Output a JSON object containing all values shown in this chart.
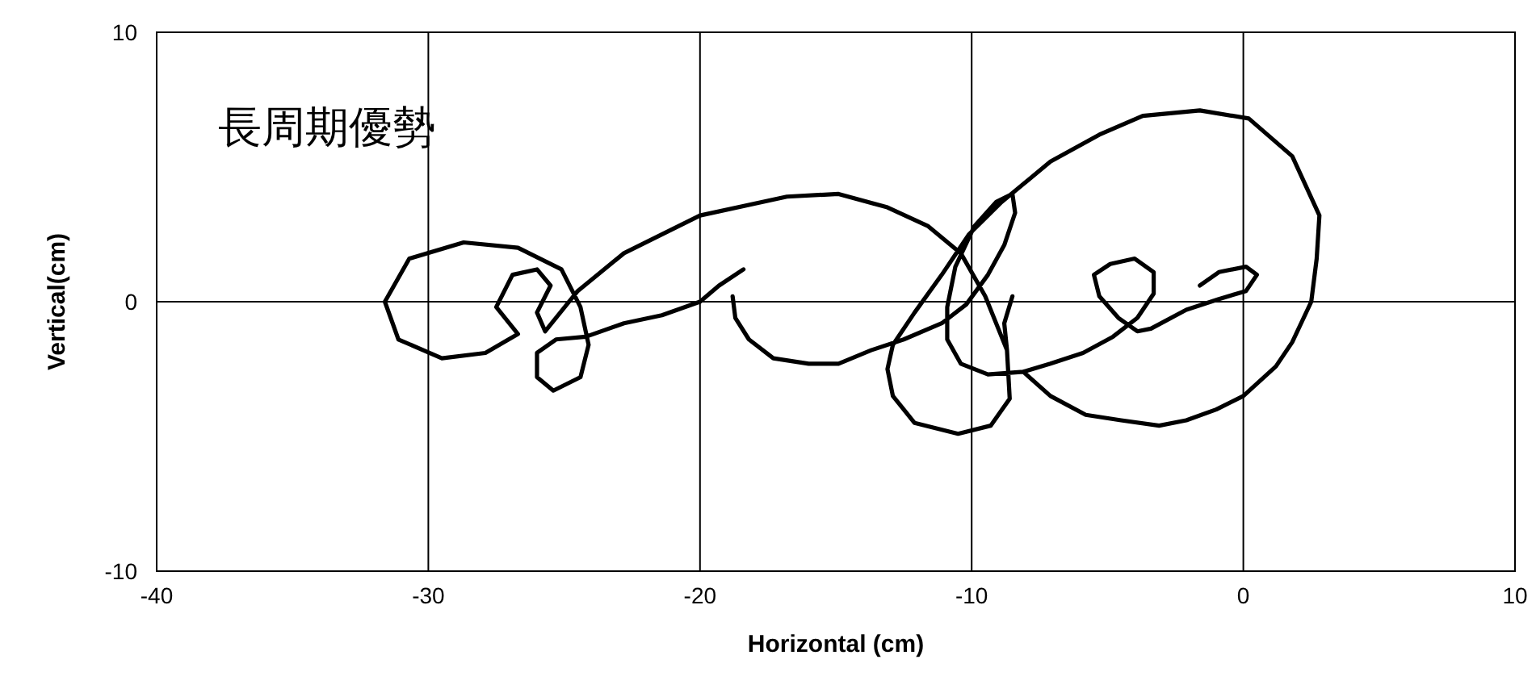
{
  "chart_data": {
    "type": "line",
    "xlabel": "Horizontal (cm)",
    "ylabel": "Vertical(cm)",
    "annotations": [
      "長周期優勢"
    ],
    "xlim": [
      -40,
      10
    ],
    "xticks": [
      -40,
      -30,
      -20,
      -10,
      0,
      10
    ],
    "ylim": [
      -10,
      10
    ],
    "yticks": [
      -10,
      0,
      10
    ],
    "grid": true,
    "marker": "none",
    "line_style": "solid",
    "series": [
      {
        "color": "#000000",
        "x": [
          -18.4,
          -19.3,
          -20.0,
          -21.4,
          -22.8,
          -24.2,
          -25.3,
          -26.0,
          -26.0,
          -25.4,
          -24.4,
          -24.1,
          -24.4,
          -25.1,
          -26.7,
          -28.7,
          -30.7,
          -31.6,
          -31.1,
          -29.5,
          -27.9,
          -26.7,
          -27.5,
          -26.9,
          -26.0,
          -25.5,
          -26.0,
          -25.7,
          -24.5,
          -22.8,
          -20.0,
          -16.8,
          -14.9,
          -13.1,
          -11.6,
          -10.4,
          -9.5,
          -8.7,
          -8.6,
          -9.3,
          -10.5,
          -12.1,
          -12.9,
          -13.1,
          -12.9,
          -12.1,
          -11.1,
          -10.1,
          -8.9,
          -7.1,
          -5.3,
          -3.7,
          -1.6,
          0.2,
          1.8,
          2.8,
          2.7,
          2.5,
          1.8,
          1.2,
          0,
          -1.0,
          -2.1,
          -3.1,
          -4.5,
          -5.8,
          -7.1,
          -8.1,
          -9.4,
          -10.4,
          -10.9,
          -10.9,
          -10.6,
          -9.9,
          -9.1,
          -8.5,
          -8.4,
          -8.8,
          -9.4,
          -10.2,
          -11.1,
          -12.5,
          -13.7,
          -14.9,
          -16.0,
          -17.3,
          -18.2,
          -18.7,
          -18.8,
          null,
          -1.6,
          -0.9,
          0.1,
          0.5,
          0.1,
          -0.9,
          -2.1,
          -3.4,
          -3.9,
          -4.6,
          -5.3,
          -5.5,
          -4.9,
          -4.0,
          -3.3,
          -3.3,
          -3.9,
          -4.8,
          -5.9,
          -7.1,
          -8.1,
          null,
          -8.5,
          -8.8,
          -8.7
        ],
        "values": [
          1.2,
          0.6,
          0,
          -0.5,
          -0.8,
          -1.3,
          -1.4,
          -1.9,
          -2.8,
          -3.3,
          -2.8,
          -1.6,
          -0.2,
          1.2,
          2.0,
          2.2,
          1.6,
          0,
          -1.4,
          -2.1,
          -1.9,
          -1.2,
          -0.2,
          1.0,
          1.2,
          0.6,
          -0.4,
          -1.1,
          0.4,
          1.8,
          3.2,
          3.9,
          4.0,
          3.5,
          2.8,
          1.8,
          0.2,
          -1.8,
          -3.6,
          -4.6,
          -4.9,
          -4.5,
          -3.5,
          -2.5,
          -1.6,
          -0.4,
          1.0,
          2.5,
          3.7,
          5.2,
          6.2,
          6.9,
          7.1,
          6.8,
          5.4,
          3.2,
          1.6,
          0,
          -1.5,
          -2.4,
          -3.5,
          -4.0,
          -4.4,
          -4.6,
          -4.4,
          -4.2,
          -3.5,
          -2.6,
          -2.7,
          -2.3,
          -1.4,
          -0.2,
          1.3,
          2.8,
          3.7,
          4.0,
          3.3,
          2.1,
          1.0,
          -0.1,
          -0.8,
          -1.4,
          -1.8,
          -2.3,
          -2.3,
          -2.1,
          -1.4,
          -0.6,
          0.2,
          null,
          0.6,
          1.1,
          1.3,
          1.0,
          0.4,
          0.1,
          -0.3,
          -1.0,
          -1.1,
          -0.6,
          0.2,
          1.0,
          1.4,
          1.6,
          1.1,
          0.3,
          -0.6,
          -1.3,
          -1.9,
          -2.3,
          -2.6,
          null,
          0.2,
          -0.8,
          -1.8
        ]
      }
    ]
  }
}
